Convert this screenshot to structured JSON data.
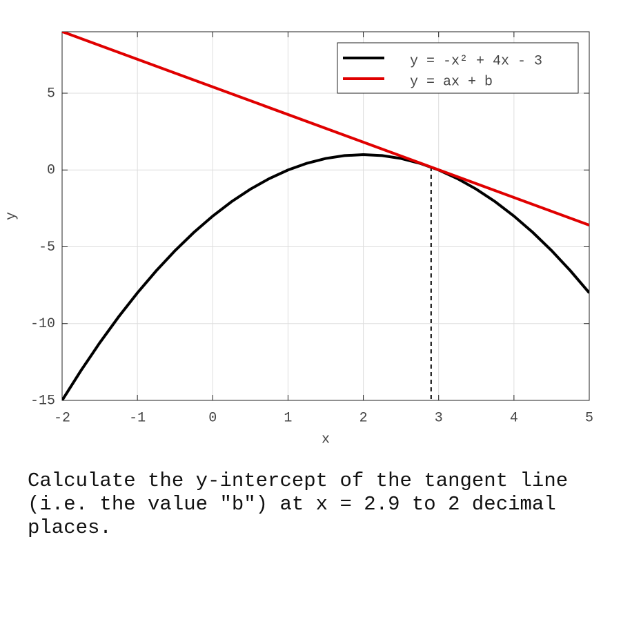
{
  "chart_data": {
    "type": "line",
    "xlabel": "x",
    "ylabel": "y",
    "xlim": [
      -2,
      5
    ],
    "ylim": [
      -15,
      9
    ],
    "xticks": [
      -2,
      -1,
      0,
      1,
      2,
      3,
      4,
      5
    ],
    "yticks": [
      -15,
      -10,
      -5,
      0,
      5
    ],
    "grid": true,
    "legend": "upper right",
    "series": [
      {
        "name": "y = -x² + 4x - 3",
        "color": "#000000",
        "x": [
          -2,
          -1.75,
          -1.5,
          -1.25,
          -1,
          -0.75,
          -0.5,
          -0.25,
          0,
          0.25,
          0.5,
          0.75,
          1,
          1.25,
          1.5,
          1.75,
          2,
          2.25,
          2.5,
          2.75,
          3,
          3.25,
          3.5,
          3.75,
          4,
          4.25,
          4.5,
          4.75,
          5
        ],
        "values": [
          -15,
          -13.0625,
          -11.25,
          -9.5625,
          -8,
          -6.5625,
          -5.25,
          -4.0625,
          -3,
          -2.0625,
          -1.25,
          -0.5625,
          0,
          0.4375,
          0.75,
          0.9375,
          1,
          0.9375,
          0.75,
          0.4375,
          0,
          -0.5625,
          -1.25,
          -2.0625,
          -3,
          -4.0625,
          -5.25,
          -6.5625,
          -8
        ]
      },
      {
        "name": "y = ax + b",
        "color": "#e00000",
        "x": [
          -2,
          5
        ],
        "values": [
          9.01,
          -3.59
        ]
      }
    ],
    "marker_line": {
      "x": 2.9,
      "y": 0.19
    }
  },
  "question": "Calculate the y-intercept of the tangent line (i.e. the value \"b\") at x = 2.9 to 2 decimal places."
}
